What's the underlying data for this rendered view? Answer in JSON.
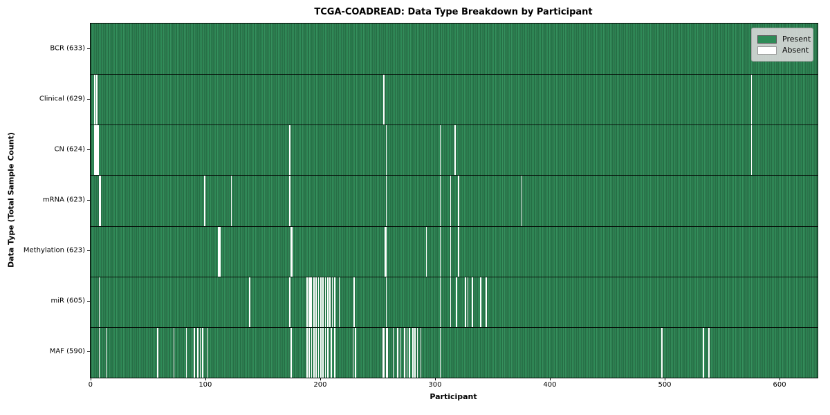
{
  "figure": {
    "title": "TCGA-COADREAD: Data Type Breakdown by Participant"
  },
  "chart_data": {
    "type": "heatmap",
    "title": "TCGA-COADREAD: Data Type Breakdown by Participant",
    "xlabel": "Participant",
    "ylabel": "Data Type (Total Sample Count)",
    "x_ticks": [
      0,
      100,
      200,
      300,
      400,
      500,
      600
    ],
    "n_participants": 633,
    "xlim": [
      -0.5,
      632.5
    ],
    "grid": false,
    "legend_position": "upper right",
    "legend": [
      {
        "label": "Present",
        "color": "#2e8b57"
      },
      {
        "label": "Absent",
        "color": "#ffffff"
      }
    ],
    "colors": {
      "present": "#2e8b57",
      "absent": "#ffffff",
      "bar_edge": "#000000",
      "legend_bg": "#d9d9d9"
    },
    "rows": [
      {
        "data_type": "BCR",
        "label": "BCR (633)",
        "present_count": 633,
        "absent_participants": []
      },
      {
        "data_type": "Clinical",
        "label": "Clinical (629)",
        "present_count": 629,
        "absent_participants": [
          3,
          5,
          255,
          575
        ]
      },
      {
        "data_type": "CN",
        "label": "CN (624)",
        "present_count": 624,
        "absent_participants": [
          3,
          4,
          5,
          6,
          173,
          257,
          304,
          317,
          575
        ]
      },
      {
        "data_type": "mRNA",
        "label": "mRNA (623)",
        "present_count": 623,
        "absent_participants": [
          7,
          8,
          99,
          122,
          173,
          257,
          304,
          313,
          320,
          375
        ]
      },
      {
        "data_type": "Methylation",
        "label": "Methylation (623)",
        "present_count": 623,
        "absent_participants": [
          111,
          112,
          174,
          175,
          256,
          257,
          292,
          304,
          313,
          320
        ]
      },
      {
        "data_type": "miR",
        "label": "miR (605)",
        "present_count": 605,
        "absent_participants": [
          7,
          138,
          173,
          188,
          190,
          191,
          192,
          194,
          196,
          198,
          200,
          202,
          204,
          206,
          208,
          210,
          212,
          216,
          229,
          257,
          304,
          313,
          318,
          326,
          328,
          332,
          339,
          344
        ]
      },
      {
        "data_type": "MAF",
        "label": "MAF (590)",
        "present_count": 590,
        "absent_participants": [
          7,
          13,
          58,
          72,
          83,
          90,
          93,
          95,
          97,
          101,
          174,
          188,
          190,
          192,
          194,
          196,
          198,
          200,
          202,
          204,
          206,
          209,
          212,
          228,
          230,
          254,
          255,
          257,
          258,
          263,
          267,
          269,
          273,
          275,
          277,
          280,
          282,
          284,
          287,
          304,
          497,
          533,
          538
        ]
      }
    ]
  }
}
